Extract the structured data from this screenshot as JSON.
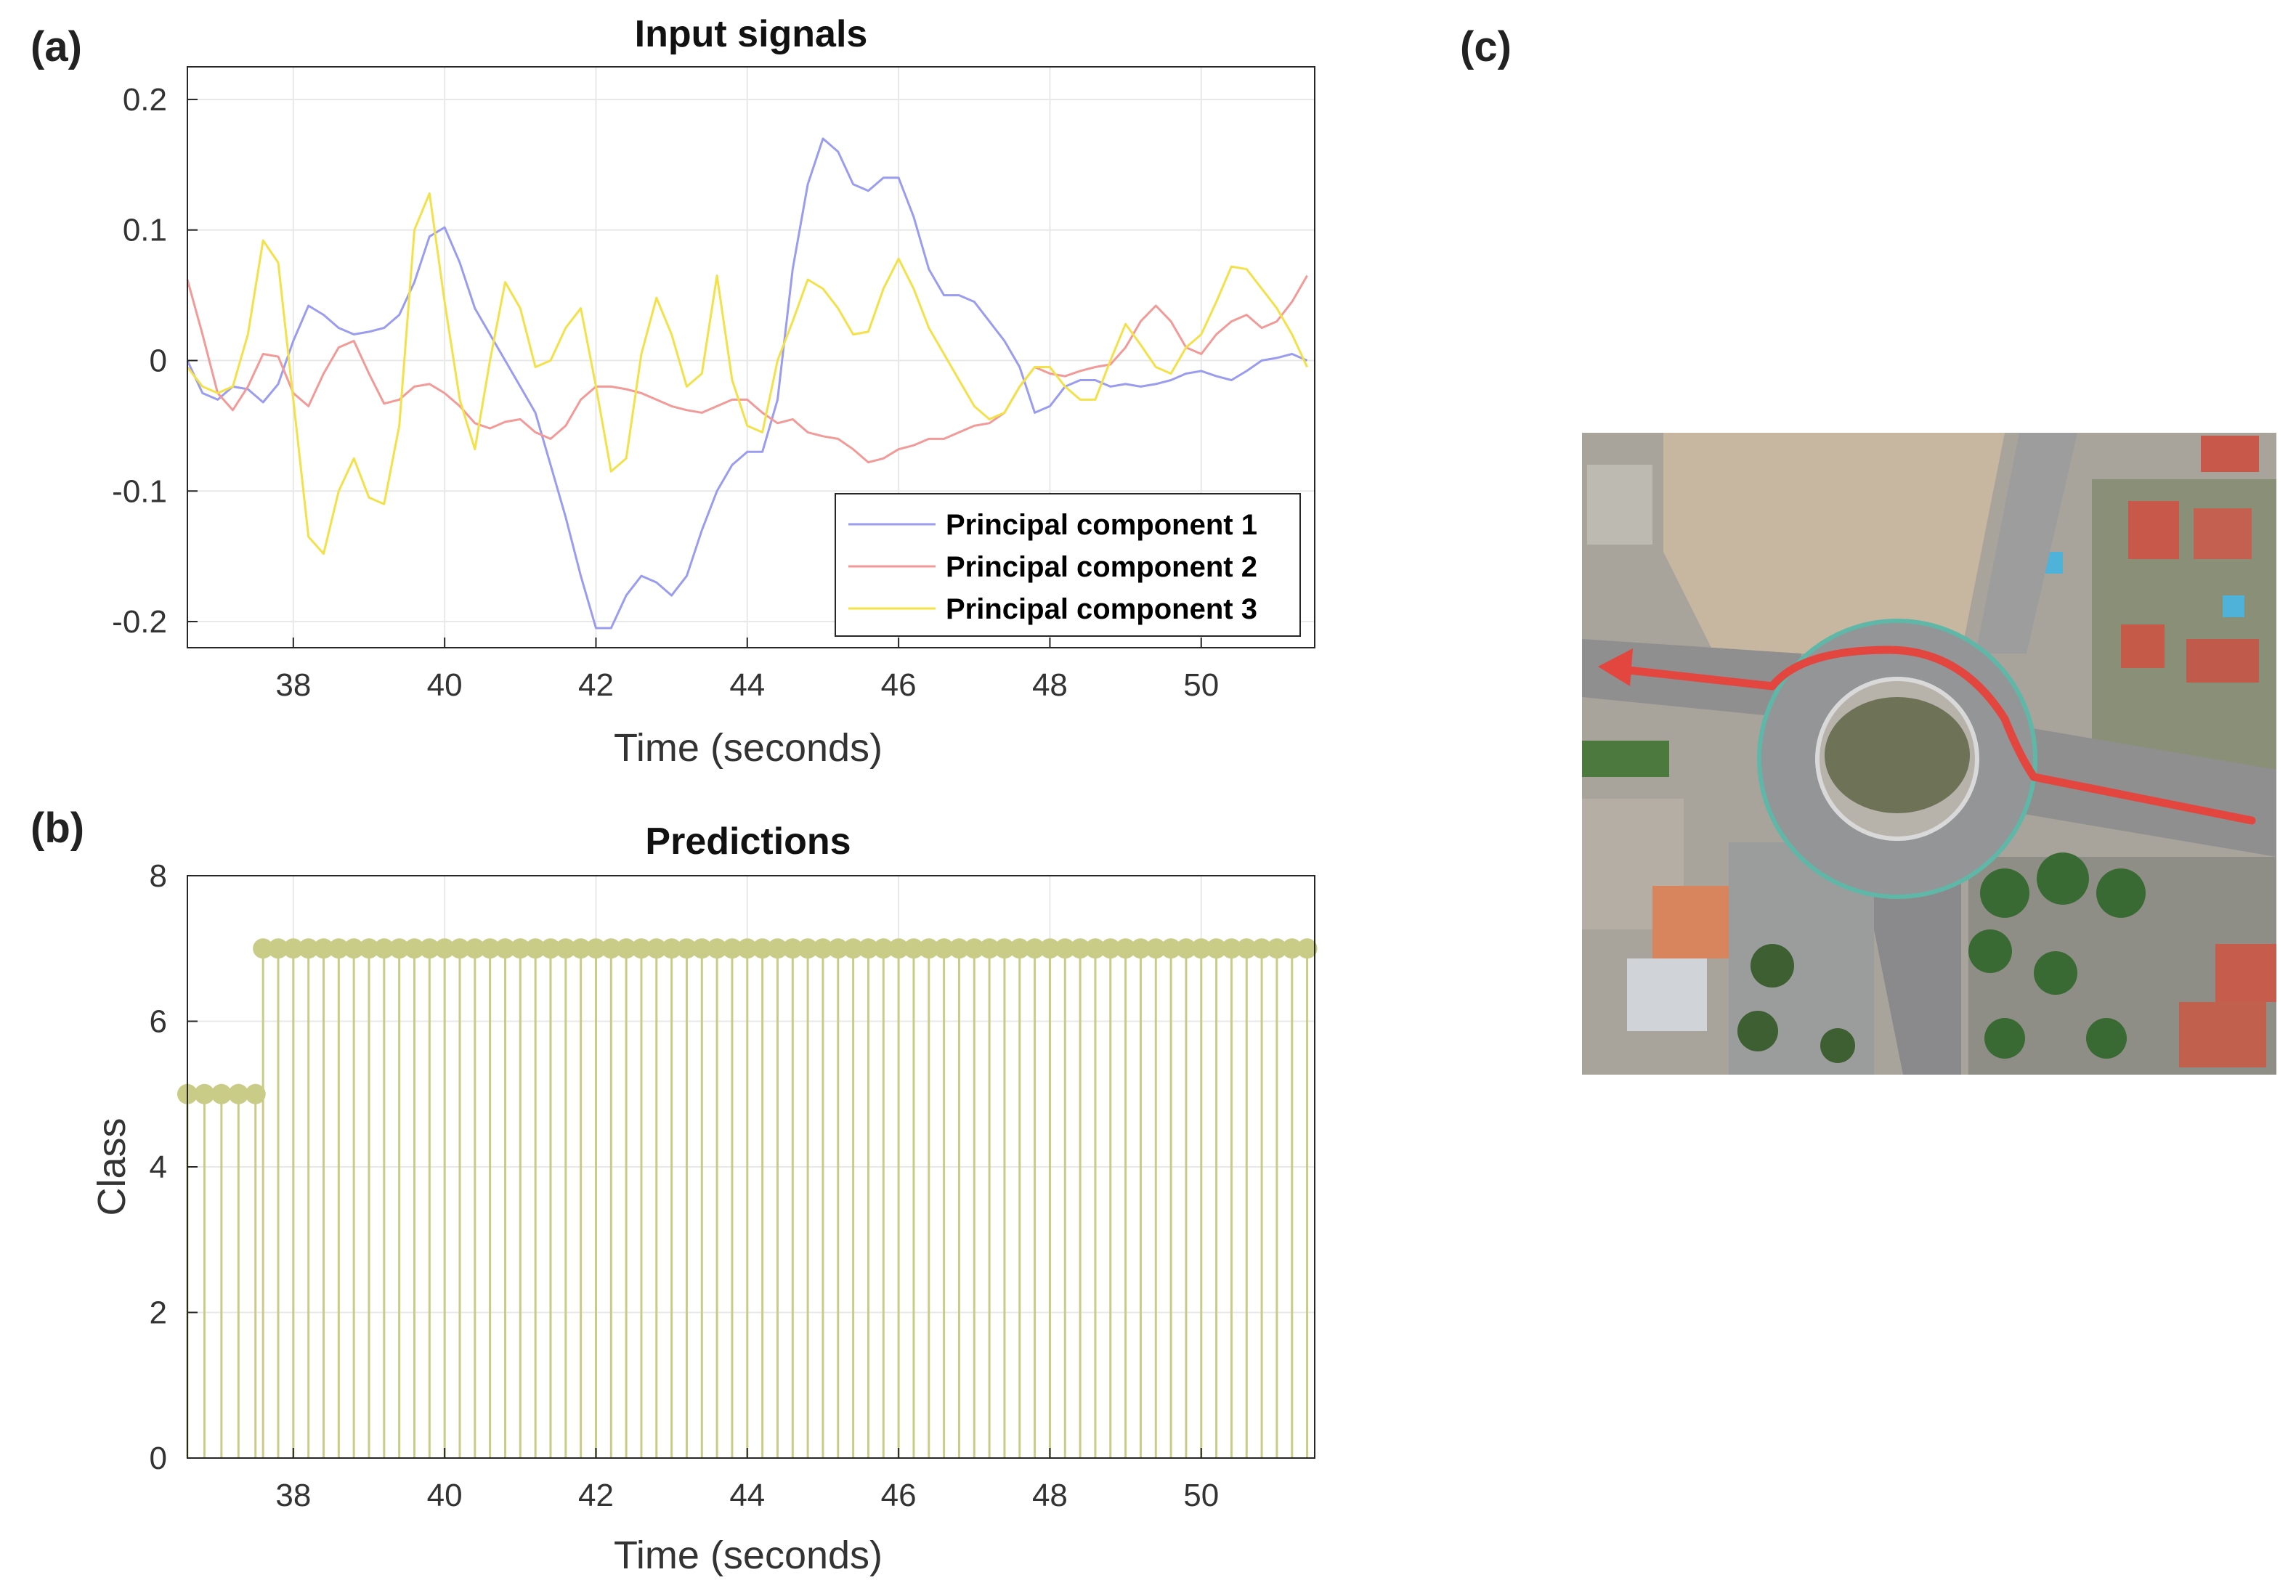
{
  "panels": {
    "a": "(a)",
    "b": "(b)",
    "c": "(c)"
  },
  "colors": {
    "pc1": "#9a9cf0",
    "pc2": "#f19a98",
    "pc3": "#f3e14a",
    "stem": "#c9cc86",
    "route": "#e2463f",
    "axis": "#262626",
    "grid": "#e8e8e8"
  },
  "chart_data": [
    {
      "type": "line",
      "title": "Input signals",
      "xlabel": "Time (seconds)",
      "ylabel": "",
      "xlim": [
        36.6,
        51.5
      ],
      "ylim": [
        -0.22,
        0.225
      ],
      "xticks": [
        38,
        40,
        42,
        44,
        46,
        48,
        50
      ],
      "yticks": [
        -0.2,
        -0.1,
        0,
        0.1,
        0.2
      ],
      "xtick_labels": [
        "38",
        "40",
        "42",
        "44",
        "46",
        "48",
        "50"
      ],
      "ytick_labels": [
        "-0.2",
        "-0.1",
        "0",
        "0.1",
        "0.2"
      ],
      "grid": true,
      "legend_position": "bottom-right",
      "x": [
        36.6,
        36.8,
        37.0,
        37.2,
        37.4,
        37.6,
        37.8,
        38.0,
        38.2,
        38.4,
        38.6,
        38.8,
        39.0,
        39.2,
        39.4,
        39.6,
        39.8,
        40.0,
        40.2,
        40.4,
        40.6,
        40.8,
        41.0,
        41.2,
        41.4,
        41.6,
        41.8,
        42.0,
        42.2,
        42.4,
        42.6,
        42.8,
        43.0,
        43.2,
        43.4,
        43.6,
        43.8,
        44.0,
        44.2,
        44.4,
        44.6,
        44.8,
        45.0,
        45.2,
        45.4,
        45.6,
        45.8,
        46.0,
        46.2,
        46.4,
        46.6,
        46.8,
        47.0,
        47.2,
        47.4,
        47.6,
        47.8,
        48.0,
        48.2,
        48.4,
        48.6,
        48.8,
        49.0,
        49.2,
        49.4,
        49.6,
        49.8,
        50.0,
        50.2,
        50.4,
        50.6,
        50.8,
        51.0,
        51.2,
        51.4
      ],
      "series": [
        {
          "name": "Principal component 1",
          "values": [
            0.0,
            -0.025,
            -0.03,
            -0.02,
            -0.022,
            -0.032,
            -0.018,
            0.015,
            0.042,
            0.035,
            0.025,
            0.02,
            0.022,
            0.025,
            0.035,
            0.06,
            0.095,
            0.102,
            0.075,
            0.04,
            0.02,
            0.0,
            -0.02,
            -0.04,
            -0.08,
            -0.12,
            -0.165,
            -0.205,
            -0.205,
            -0.18,
            -0.165,
            -0.17,
            -0.18,
            -0.165,
            -0.13,
            -0.1,
            -0.08,
            -0.07,
            -0.07,
            -0.03,
            0.07,
            0.135,
            0.17,
            0.16,
            0.135,
            0.13,
            0.14,
            0.14,
            0.11,
            0.07,
            0.05,
            0.05,
            0.045,
            0.03,
            0.015,
            -0.005,
            -0.04,
            -0.035,
            -0.02,
            -0.015,
            -0.015,
            -0.02,
            -0.018,
            -0.02,
            -0.018,
            -0.015,
            -0.01,
            -0.008,
            -0.012,
            -0.015,
            -0.008,
            0.0,
            0.002,
            0.005,
            0.0
          ]
        },
        {
          "name": "Principal component 2",
          "values": [
            0.062,
            0.02,
            -0.025,
            -0.038,
            -0.02,
            0.005,
            0.003,
            -0.025,
            -0.035,
            -0.01,
            0.01,
            0.015,
            -0.01,
            -0.033,
            -0.03,
            -0.02,
            -0.018,
            -0.025,
            -0.035,
            -0.048,
            -0.052,
            -0.047,
            -0.045,
            -0.055,
            -0.06,
            -0.05,
            -0.03,
            -0.02,
            -0.02,
            -0.022,
            -0.025,
            -0.03,
            -0.035,
            -0.038,
            -0.04,
            -0.035,
            -0.03,
            -0.03,
            -0.04,
            -0.048,
            -0.045,
            -0.055,
            -0.058,
            -0.06,
            -0.068,
            -0.078,
            -0.075,
            -0.068,
            -0.065,
            -0.06,
            -0.06,
            -0.055,
            -0.05,
            -0.048,
            -0.04,
            -0.02,
            -0.005,
            -0.01,
            -0.012,
            -0.008,
            -0.005,
            -0.003,
            0.01,
            0.03,
            0.042,
            0.03,
            0.01,
            0.005,
            0.02,
            0.03,
            0.035,
            0.025,
            0.03,
            0.045,
            0.065
          ]
        },
        {
          "name": "Principal component 3",
          "values": [
            -0.005,
            -0.02,
            -0.025,
            -0.02,
            0.02,
            0.092,
            0.075,
            -0.03,
            -0.135,
            -0.148,
            -0.1,
            -0.075,
            -0.105,
            -0.11,
            -0.05,
            0.1,
            0.128,
            0.045,
            -0.03,
            -0.068,
            0.0,
            0.06,
            0.04,
            -0.005,
            0.0,
            0.025,
            0.04,
            -0.02,
            -0.085,
            -0.075,
            0.005,
            0.048,
            0.02,
            -0.02,
            -0.01,
            0.065,
            -0.015,
            -0.05,
            -0.055,
            0.0,
            0.03,
            0.062,
            0.055,
            0.04,
            0.02,
            0.022,
            0.055,
            0.078,
            0.055,
            0.025,
            0.005,
            -0.015,
            -0.035,
            -0.045,
            -0.04,
            -0.02,
            -0.005,
            -0.005,
            -0.02,
            -0.03,
            -0.03,
            0.0,
            0.028,
            0.012,
            -0.005,
            -0.01,
            0.01,
            0.02,
            0.045,
            0.072,
            0.07,
            0.055,
            0.04,
            0.02,
            -0.005
          ]
        }
      ]
    },
    {
      "type": "stem",
      "title": "Predictions",
      "xlabel": "Time (seconds)",
      "ylabel": "Class",
      "xlim": [
        36.6,
        51.5
      ],
      "ylim": [
        0,
        8
      ],
      "xticks": [
        38,
        40,
        42,
        44,
        46,
        48,
        50
      ],
      "yticks": [
        0,
        2,
        4,
        6,
        8
      ],
      "xtick_labels": [
        "38",
        "40",
        "42",
        "44",
        "46",
        "48",
        "50"
      ],
      "ytick_labels": [
        "0",
        "2",
        "4",
        "6",
        "8"
      ],
      "grid": true,
      "segments": [
        {
          "x_start": 36.6,
          "x_end": 37.5,
          "count": 5,
          "value": 5
        },
        {
          "x_start": 37.6,
          "x_end": 51.4,
          "count": 70,
          "value": 7
        }
      ]
    }
  ],
  "image_c": {
    "label": "roundabout-aerial-map",
    "route_color": "#e2463f"
  }
}
